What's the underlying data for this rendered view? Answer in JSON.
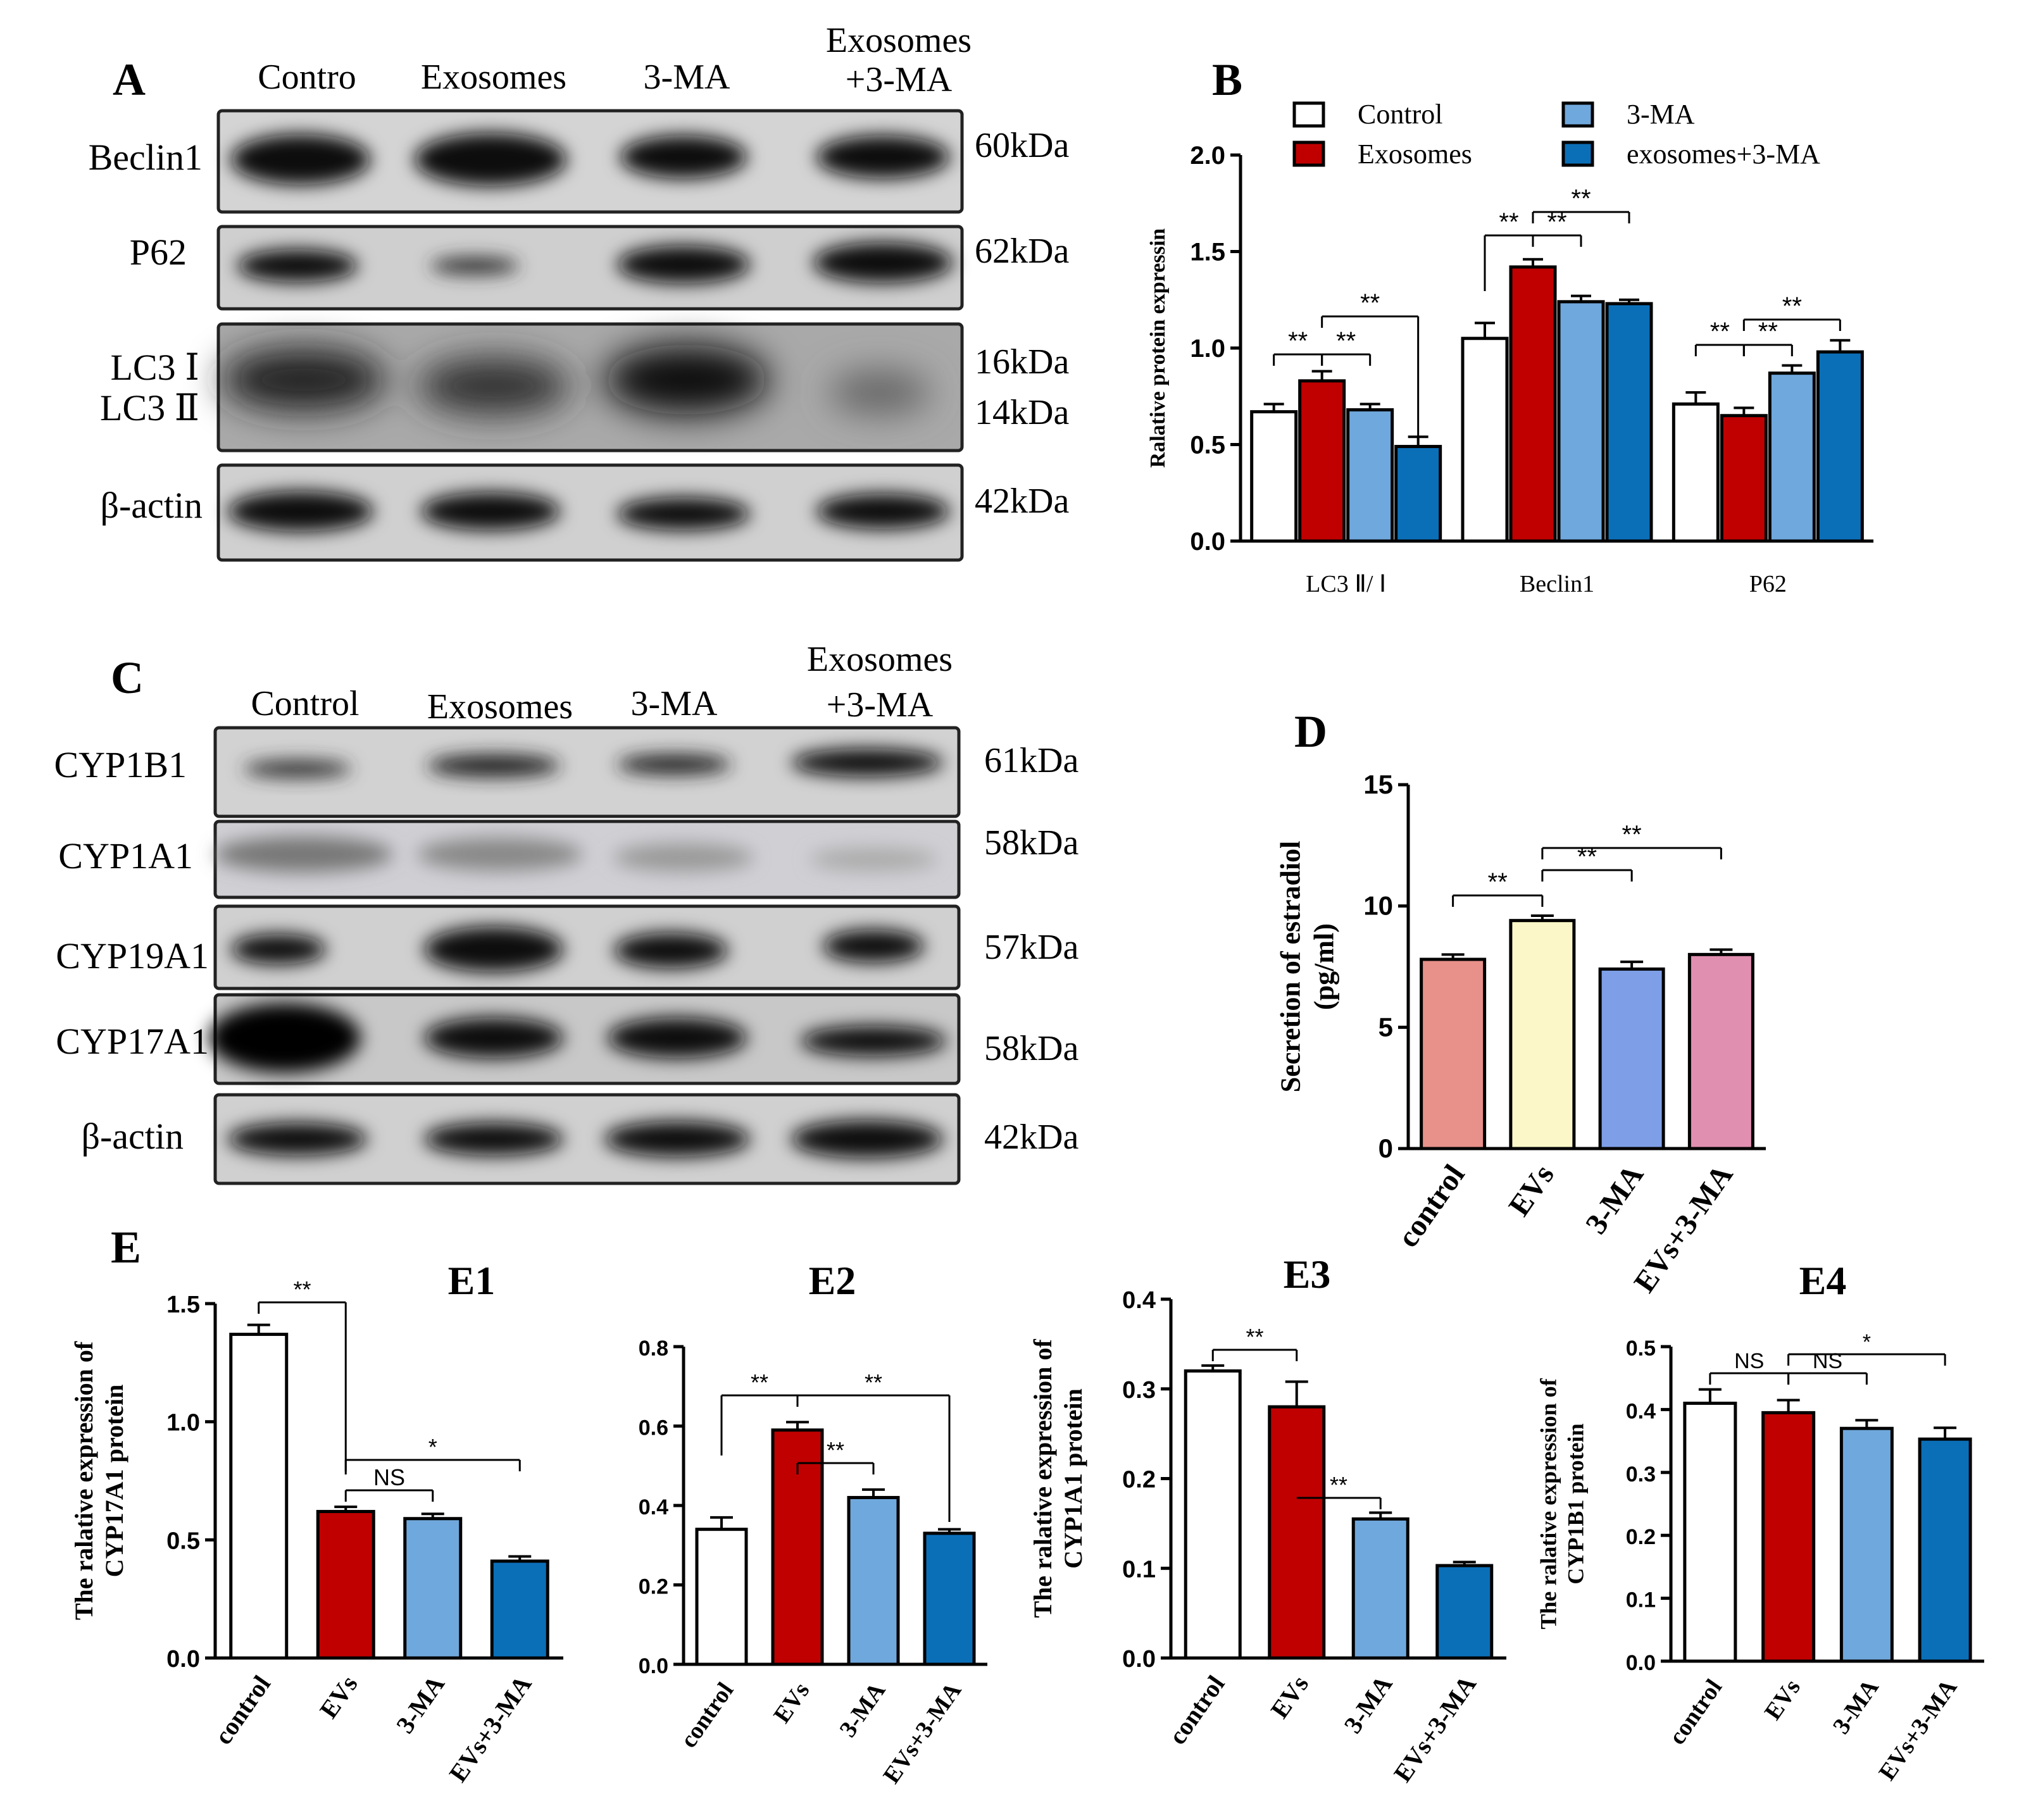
{
  "colors": {
    "control": "#ffffff",
    "exosomes": "#c00000",
    "ma3": "#6fa8dc",
    "combo": "#0b6fb8",
    "d_control": "#e8908a",
    "d_evs": "#fbf7c8",
    "d_ma3": "#7e9fe8",
    "d_combo": "#e08fb0"
  },
  "panels": {
    "A": {
      "label": "A",
      "lanes": [
        "Contro",
        "Exosomes",
        "3-MA",
        "Exosomes\n+3-MA"
      ],
      "rows": [
        {
          "name": "Beclin1",
          "kda": "60kDa"
        },
        {
          "name": "P62",
          "kda": "62kDa"
        },
        {
          "name": "LC3 Ⅰ\nLC3 Ⅱ",
          "kda": "16kDa\n14kDa"
        },
        {
          "name": "β-actin",
          "kda": "42kDa"
        }
      ]
    },
    "C": {
      "label": "C",
      "lanes": [
        "Control",
        "Exosomes",
        "3-MA",
        "Exosomes\n+3-MA"
      ],
      "rows": [
        {
          "name": "CYP1B1",
          "kda": "61kDa"
        },
        {
          "name": "CYP1A1",
          "kda": "58kDa"
        },
        {
          "name": "CYP19A1",
          "kda": "57kDa"
        },
        {
          "name": "CYP17A1",
          "kda": "58kDa"
        },
        {
          "name": "β-actin",
          "kda": "42kDa"
        }
      ]
    },
    "E": {
      "label": "E"
    }
  },
  "chart_data": [
    {
      "id": "B",
      "panel_label": "B",
      "type": "bar",
      "ylabel": "Ralative protein expressin",
      "ylim": [
        0,
        2.0
      ],
      "yticks": [
        "0.0",
        "0.5",
        "1.0",
        "1.5",
        "2.0"
      ],
      "categories": [
        "LC3 Ⅱ/ Ⅰ",
        "Beclin1",
        "P62"
      ],
      "legend": [
        "Control",
        "Exosomes",
        "3-MA",
        "exosomes+3-MA"
      ],
      "series": [
        {
          "name": "Control",
          "values": [
            0.67,
            1.05,
            0.71
          ],
          "errors": [
            0.04,
            0.08,
            0.06
          ]
        },
        {
          "name": "Exosomes",
          "values": [
            0.83,
            1.42,
            0.65
          ],
          "errors": [
            0.05,
            0.04,
            0.04
          ]
        },
        {
          "name": "3-MA",
          "values": [
            0.68,
            1.24,
            0.87
          ],
          "errors": [
            0.03,
            0.03,
            0.04
          ]
        },
        {
          "name": "exosomes+3-MA",
          "values": [
            0.49,
            1.23,
            0.98
          ],
          "errors": [
            0.05,
            0.02,
            0.06
          ]
        }
      ],
      "annotations": [
        "**",
        "**",
        "**",
        "**",
        "**",
        "**",
        "**",
        "**",
        "**"
      ]
    },
    {
      "id": "D",
      "panel_label": "D",
      "type": "bar",
      "ylabel": "Secretion of estradiol\n(pg/ml)",
      "ylim": [
        0,
        15
      ],
      "yticks": [
        "0",
        "5",
        "10",
        "15"
      ],
      "categories": [
        "control",
        "EVs",
        "3-MA",
        "EVs+3-MA"
      ],
      "values": [
        7.8,
        9.4,
        7.4,
        8.0
      ],
      "errors": [
        0.2,
        0.2,
        0.3,
        0.2
      ],
      "annotations": [
        "**",
        "**",
        "**"
      ]
    },
    {
      "id": "E1",
      "title": "E1",
      "type": "bar",
      "ylabel": "The ralative expression of\nCYP17A1 protein",
      "ylim": [
        0,
        1.5
      ],
      "yticks": [
        "0.0",
        "0.5",
        "1.0",
        "1.5"
      ],
      "categories": [
        "control",
        "EVs",
        "3-MA",
        "EVs+3-MA"
      ],
      "values": [
        1.37,
        0.62,
        0.59,
        0.41
      ],
      "errors": [
        0.04,
        0.02,
        0.02,
        0.02
      ],
      "annotations": [
        "**",
        "NS",
        "*"
      ]
    },
    {
      "id": "E2",
      "title": "E2",
      "type": "bar",
      "ylabel": "",
      "ylim": [
        0,
        0.8
      ],
      "yticks": [
        "0.0",
        "0.2",
        "0.4",
        "0.6",
        "0.8"
      ],
      "categories": [
        "control",
        "EVs",
        "3-MA",
        "EVs+3-MA"
      ],
      "values": [
        0.34,
        0.59,
        0.42,
        0.33
      ],
      "errors": [
        0.03,
        0.02,
        0.02,
        0.01
      ],
      "annotations": [
        "**",
        "**",
        "**"
      ]
    },
    {
      "id": "E3",
      "title": "E3",
      "type": "bar",
      "ylabel": "The ralative expression of\nCYP1A1 protein",
      "ylim": [
        0,
        0.4
      ],
      "yticks": [
        "0.0",
        "0.1",
        "0.2",
        "0.3",
        "0.4"
      ],
      "categories": [
        "control",
        "EVs",
        "3-MA",
        "EVs+3-MA"
      ],
      "values": [
        0.32,
        0.28,
        0.155,
        0.103
      ],
      "errors": [
        0.006,
        0.028,
        0.007,
        0.004
      ],
      "annotations": [
        "**",
        "**"
      ]
    },
    {
      "id": "E4",
      "title": "E4",
      "type": "bar",
      "ylabel": "The ralative expression of\nCYP1B1 protein",
      "ylim": [
        0,
        0.5
      ],
      "yticks": [
        "0.0",
        "0.1",
        "0.2",
        "0.3",
        "0.4",
        "0.5"
      ],
      "categories": [
        "control",
        "EVs",
        "3-MA",
        "EVs+3-MA"
      ],
      "values": [
        0.41,
        0.395,
        0.37,
        0.353
      ],
      "errors": [
        0.022,
        0.02,
        0.013,
        0.018
      ],
      "annotations": [
        "NS",
        "NS",
        "*"
      ]
    }
  ]
}
